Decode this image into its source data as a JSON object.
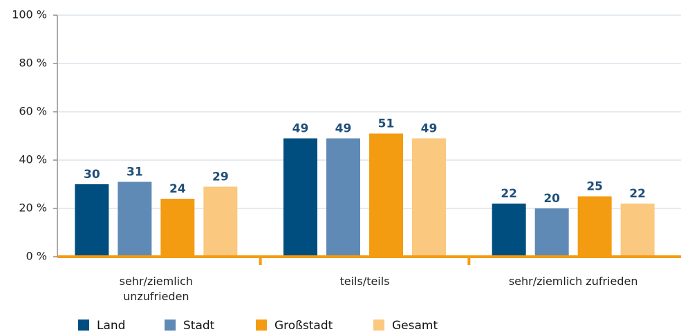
{
  "chart_data": {
    "type": "bar",
    "categories": [
      "sehr/ziemlich\nunzufrieden",
      "teils/teils",
      "sehr/ziemlich zufrieden"
    ],
    "series": [
      {
        "name": "Land",
        "color": "#004e7f",
        "values": [
          30,
          49,
          22
        ]
      },
      {
        "name": "Stadt",
        "color": "#5f8ab5",
        "values": [
          31,
          49,
          20
        ]
      },
      {
        "name": "Großstadt",
        "color": "#f39c12",
        "values": [
          24,
          51,
          25
        ]
      },
      {
        "name": "Gesamt",
        "color": "#fbc87f",
        "values": [
          29,
          49,
          22
        ]
      }
    ],
    "ylim": [
      0,
      100
    ],
    "yticks": [
      {
        "value": 0,
        "label": "0 %"
      },
      {
        "value": 20,
        "label": "20 %"
      },
      {
        "value": 40,
        "label": "40 %"
      },
      {
        "value": 60,
        "label": "60 %"
      },
      {
        "value": 80,
        "label": "80 %"
      },
      {
        "value": 100,
        "label": "100 %"
      }
    ],
    "grid": true
  }
}
